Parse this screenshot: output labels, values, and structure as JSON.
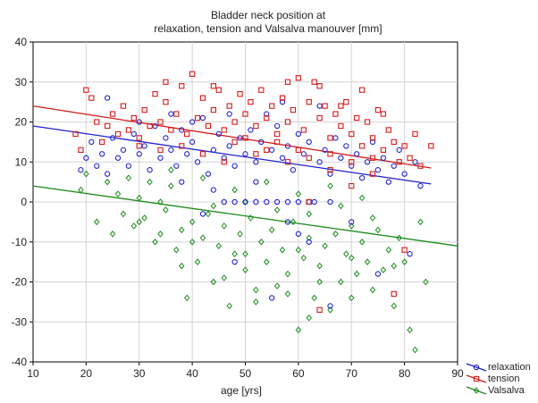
{
  "chart_data": {
    "type": "scatter",
    "title": "Bladder neck position at",
    "subtitle": "relaxation, tension and Valsalva manouver [mm]",
    "xlabel": "age [yrs]",
    "ylabel": "",
    "xlim": [
      10,
      90
    ],
    "ylim": [
      -40,
      40
    ],
    "xticks": [
      10,
      20,
      30,
      40,
      50,
      60,
      70,
      80,
      90
    ],
    "yticks": [
      -40,
      -30,
      -20,
      -10,
      0,
      10,
      20,
      30,
      40
    ],
    "grid": true,
    "legend_position": "bottom-right",
    "series": [
      {
        "name": "relaxation",
        "color": "#1f1fd0",
        "marker": "circle",
        "trend": [
          [
            10,
            19
          ],
          [
            85,
            4.5
          ]
        ],
        "points": [
          [
            19,
            8
          ],
          [
            20,
            11
          ],
          [
            21,
            15
          ],
          [
            22,
            9
          ],
          [
            23,
            12
          ],
          [
            24,
            7
          ],
          [
            25,
            16
          ],
          [
            26,
            11
          ],
          [
            27,
            13
          ],
          [
            28,
            9
          ],
          [
            29,
            17
          ],
          [
            30,
            12
          ],
          [
            31,
            14
          ],
          [
            32,
            8
          ],
          [
            33,
            19
          ],
          [
            34,
            11
          ],
          [
            35,
            16
          ],
          [
            36,
            13
          ],
          [
            37,
            9
          ],
          [
            38,
            18
          ],
          [
            39,
            12
          ],
          [
            40,
            15
          ],
          [
            41,
            10
          ],
          [
            42,
            21
          ],
          [
            43,
            7
          ],
          [
            44,
            13
          ],
          [
            45,
            17
          ],
          [
            46,
            11
          ],
          [
            47,
            14
          ],
          [
            48,
            9
          ],
          [
            49,
            16
          ],
          [
            50,
            12
          ],
          [
            51,
            18
          ],
          [
            52,
            10
          ],
          [
            53,
            15
          ],
          [
            54,
            0
          ],
          [
            55,
            13
          ],
          [
            56,
            19
          ],
          [
            57,
            11
          ],
          [
            58,
            14
          ],
          [
            59,
            8
          ],
          [
            60,
            17
          ],
          [
            61,
            12
          ],
          [
            62,
            15
          ],
          [
            63,
            0
          ],
          [
            64,
            10
          ],
          [
            65,
            13
          ],
          [
            66,
            7
          ],
          [
            67,
            16
          ],
          [
            68,
            11
          ],
          [
            69,
            14
          ],
          [
            70,
            9
          ],
          [
            71,
            12
          ],
          [
            72,
            6
          ],
          [
            73,
            10
          ],
          [
            74,
            15
          ],
          [
            75,
            8
          ],
          [
            76,
            11
          ],
          [
            77,
            5
          ],
          [
            78,
            9
          ],
          [
            79,
            13
          ],
          [
            80,
            7
          ],
          [
            81,
            -13
          ],
          [
            82,
            10
          ],
          [
            83,
            4
          ],
          [
            46,
            0
          ],
          [
            48,
            0
          ],
          [
            50,
            0
          ],
          [
            52,
            0
          ],
          [
            56,
            0
          ],
          [
            58,
            0
          ],
          [
            60,
            0
          ],
          [
            62,
            0
          ],
          [
            66,
            0
          ],
          [
            58,
            -5
          ],
          [
            62,
            -10
          ],
          [
            66,
            -26
          ],
          [
            55,
            -24
          ],
          [
            48,
            -15
          ],
          [
            42,
            -3
          ],
          [
            38,
            5
          ],
          [
            44,
            3
          ],
          [
            52,
            5
          ],
          [
            60,
            -8
          ],
          [
            70,
            -5
          ],
          [
            75,
            -18
          ],
          [
            24,
            26
          ],
          [
            36,
            22
          ],
          [
            40,
            20
          ],
          [
            54,
            22
          ],
          [
            64,
            24
          ],
          [
            30,
            20
          ],
          [
            47,
            22
          ],
          [
            57,
            25
          ]
        ]
      },
      {
        "name": "tension",
        "color": "#d41c1c",
        "marker": "square",
        "trend": [
          [
            10,
            24
          ],
          [
            85,
            8.5
          ]
        ],
        "points": [
          [
            18,
            17
          ],
          [
            19,
            13
          ],
          [
            20,
            28
          ],
          [
            21,
            26
          ],
          [
            22,
            20
          ],
          [
            23,
            15
          ],
          [
            24,
            19
          ],
          [
            25,
            22
          ],
          [
            26,
            17
          ],
          [
            27,
            24
          ],
          [
            28,
            18
          ],
          [
            29,
            21
          ],
          [
            30,
            16
          ],
          [
            31,
            23
          ],
          [
            32,
            19
          ],
          [
            33,
            27
          ],
          [
            34,
            20
          ],
          [
            35,
            25
          ],
          [
            36,
            18
          ],
          [
            37,
            22
          ],
          [
            38,
            29
          ],
          [
            39,
            17
          ],
          [
            40,
            32
          ],
          [
            41,
            21
          ],
          [
            42,
            26
          ],
          [
            43,
            19
          ],
          [
            44,
            23
          ],
          [
            45,
            28
          ],
          [
            46,
            18
          ],
          [
            47,
            24
          ],
          [
            48,
            20
          ],
          [
            49,
            27
          ],
          [
            50,
            22
          ],
          [
            51,
            25
          ],
          [
            52,
            19
          ],
          [
            53,
            28
          ],
          [
            54,
            21
          ],
          [
            55,
            24
          ],
          [
            56,
            17
          ],
          [
            57,
            26
          ],
          [
            58,
            20
          ],
          [
            59,
            23
          ],
          [
            60,
            31
          ],
          [
            61,
            18
          ],
          [
            62,
            25
          ],
          [
            63,
            30
          ],
          [
            64,
            21
          ],
          [
            65,
            24
          ],
          [
            66,
            16
          ],
          [
            67,
            22
          ],
          [
            68,
            19
          ],
          [
            69,
            25
          ],
          [
            70,
            17
          ],
          [
            71,
            21
          ],
          [
            72,
            14
          ],
          [
            73,
            20
          ],
          [
            74,
            16
          ],
          [
            75,
            23
          ],
          [
            76,
            13
          ],
          [
            77,
            18
          ],
          [
            78,
            15
          ],
          [
            79,
            10
          ],
          [
            80,
            14
          ],
          [
            81,
            11
          ],
          [
            82,
            17
          ],
          [
            83,
            9
          ],
          [
            85,
            14
          ],
          [
            35,
            30
          ],
          [
            44,
            29
          ],
          [
            58,
            30
          ],
          [
            64,
            29
          ],
          [
            68,
            24
          ],
          [
            72,
            28
          ],
          [
            76,
            22
          ],
          [
            62,
            0
          ],
          [
            70,
            4
          ],
          [
            64,
            -27
          ],
          [
            78,
            -23
          ],
          [
            46,
            10
          ],
          [
            52,
            12
          ],
          [
            56,
            15
          ],
          [
            60,
            13
          ],
          [
            38,
            14
          ],
          [
            42,
            12
          ],
          [
            48,
            15
          ],
          [
            54,
            13
          ],
          [
            66,
            12
          ],
          [
            70,
            10
          ],
          [
            74,
            11
          ],
          [
            30,
            14
          ],
          [
            34,
            13
          ],
          [
            50,
            16
          ],
          [
            58,
            10
          ],
          [
            62,
            11
          ],
          [
            66,
            8
          ],
          [
            74,
            7
          ],
          [
            80,
            -12
          ]
        ]
      },
      {
        "name": "Valsalva",
        "color": "#1c8a1c",
        "marker": "diamond",
        "trend": [
          [
            10,
            4
          ],
          [
            90,
            -11
          ]
        ],
        "points": [
          [
            19,
            3
          ],
          [
            20,
            7
          ],
          [
            22,
            -5
          ],
          [
            24,
            5
          ],
          [
            25,
            -8
          ],
          [
            26,
            2
          ],
          [
            27,
            -3
          ],
          [
            28,
            6
          ],
          [
            29,
            -6
          ],
          [
            30,
            1
          ],
          [
            31,
            -4
          ],
          [
            32,
            5
          ],
          [
            33,
            -10
          ],
          [
            34,
            0
          ],
          [
            35,
            -2
          ],
          [
            36,
            4
          ],
          [
            37,
            -12
          ],
          [
            38,
            -7
          ],
          [
            39,
            -24
          ],
          [
            40,
            -5
          ],
          [
            41,
            -15
          ],
          [
            42,
            -9
          ],
          [
            43,
            -3
          ],
          [
            44,
            -20
          ],
          [
            45,
            -11
          ],
          [
            46,
            -6
          ],
          [
            47,
            -26
          ],
          [
            48,
            -13
          ],
          [
            49,
            -8
          ],
          [
            50,
            -17
          ],
          [
            51,
            -4
          ],
          [
            52,
            -22
          ],
          [
            53,
            -10
          ],
          [
            54,
            -15
          ],
          [
            55,
            -7
          ],
          [
            56,
            -21
          ],
          [
            57,
            -12
          ],
          [
            58,
            -18
          ],
          [
            59,
            -5
          ],
          [
            60,
            -32
          ],
          [
            61,
            -14
          ],
          [
            62,
            -9
          ],
          [
            63,
            -24
          ],
          [
            64,
            -16
          ],
          [
            65,
            -11
          ],
          [
            66,
            -27
          ],
          [
            67,
            -8
          ],
          [
            68,
            -20
          ],
          [
            69,
            -13
          ],
          [
            70,
            -6
          ],
          [
            71,
            -18
          ],
          [
            72,
            -10
          ],
          [
            73,
            -15
          ],
          [
            74,
            -22
          ],
          [
            75,
            -7
          ],
          [
            76,
            -17
          ],
          [
            77,
            -12
          ],
          [
            78,
            -26
          ],
          [
            79,
            -9
          ],
          [
            80,
            -15
          ],
          [
            81,
            -32
          ],
          [
            82,
            -37
          ],
          [
            83,
            -5
          ],
          [
            84,
            -20
          ],
          [
            36,
            8
          ],
          [
            42,
            6
          ],
          [
            48,
            3
          ],
          [
            54,
            5
          ],
          [
            60,
            2
          ],
          [
            66,
            4
          ],
          [
            72,
            1
          ],
          [
            44,
            -1
          ],
          [
            50,
            0
          ],
          [
            56,
            -2
          ],
          [
            62,
            -3
          ],
          [
            68,
            -1
          ],
          [
            74,
            -4
          ],
          [
            38,
            -16
          ],
          [
            46,
            -19
          ],
          [
            52,
            -25
          ],
          [
            58,
            -23
          ],
          [
            64,
            -20
          ],
          [
            70,
            -24
          ],
          [
            40,
            -10
          ],
          [
            50,
            -13
          ],
          [
            60,
            -12
          ],
          [
            70,
            -14
          ],
          [
            78,
            -16
          ],
          [
            34,
            -8
          ],
          [
            30,
            -5
          ],
          [
            62,
            -29
          ]
        ]
      }
    ]
  }
}
